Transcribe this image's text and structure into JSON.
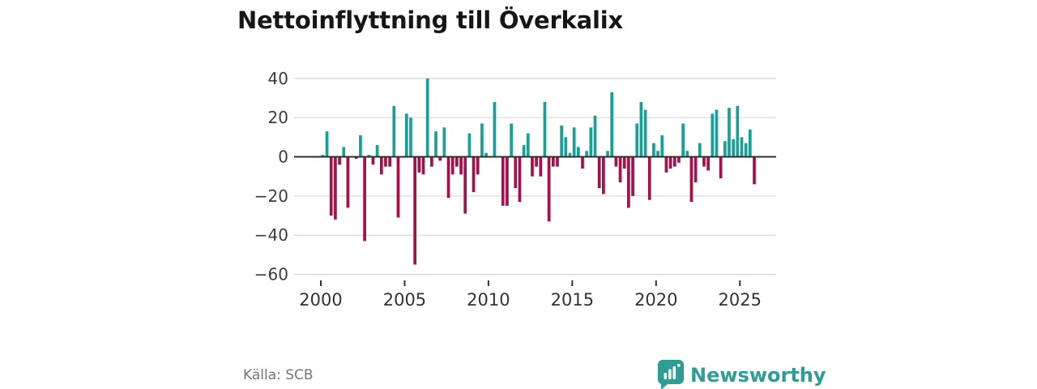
{
  "title": "Nettoinflyttning till Överkalix",
  "source": "Källa: SCB",
  "brand": {
    "name": "Newsworthy",
    "color": "#2f9d94",
    "logo_icon": "bar-chart-speech-bubble"
  },
  "chart_data": {
    "type": "bar",
    "title": "Nettoinflyttning till Överkalix",
    "frequency": "quarterly",
    "start": "2000 Q1",
    "end": "2025 Q4",
    "grid": "horizontal",
    "legend": "none",
    "xlabel": "",
    "ylabel": "",
    "ylim": [
      -62,
      46
    ],
    "y_ticks": [
      40,
      20,
      0,
      -20,
      -40,
      -60
    ],
    "y_tick_labels": [
      "40",
      "20",
      "0",
      "−20",
      "−40",
      "−60"
    ],
    "x_tick_years": [
      2000,
      2005,
      2010,
      2015,
      2020,
      2025
    ],
    "x_tick_labels": [
      "2000",
      "2005",
      "2010",
      "2015",
      "2020",
      "2025"
    ],
    "positive_color": "#18a096",
    "negative_color": "#a3104a",
    "gridline_color": "#dcdcdc",
    "axis_color": "#2f2f2f",
    "values": [
      1,
      13,
      -30,
      -32,
      -4,
      5,
      -26,
      0,
      -1,
      11,
      -43,
      1,
      -4,
      6,
      -9,
      -5,
      -5,
      26,
      -31,
      0,
      22,
      20,
      -55,
      -8,
      -9,
      40,
      -5,
      13,
      -2,
      15,
      -21,
      -9,
      -5,
      -9,
      -29,
      12,
      -18,
      -9,
      17,
      2,
      0,
      28,
      0,
      -25,
      -25,
      17,
      -16,
      -23,
      6,
      12,
      -10,
      -5,
      -10,
      28,
      -33,
      -5,
      -5,
      16,
      10,
      2,
      15,
      5,
      -6,
      3,
      15,
      21,
      -16,
      -19,
      3,
      33,
      -5,
      -13,
      -6,
      -26,
      -20,
      17,
      28,
      24,
      -22,
      7,
      3,
      11,
      -8,
      -6,
      -5,
      -3,
      17,
      3,
      -23,
      -13,
      7,
      -5,
      -7,
      22,
      24,
      -11,
      8,
      25,
      9,
      26,
      10,
      7,
      14,
      -14
    ]
  }
}
